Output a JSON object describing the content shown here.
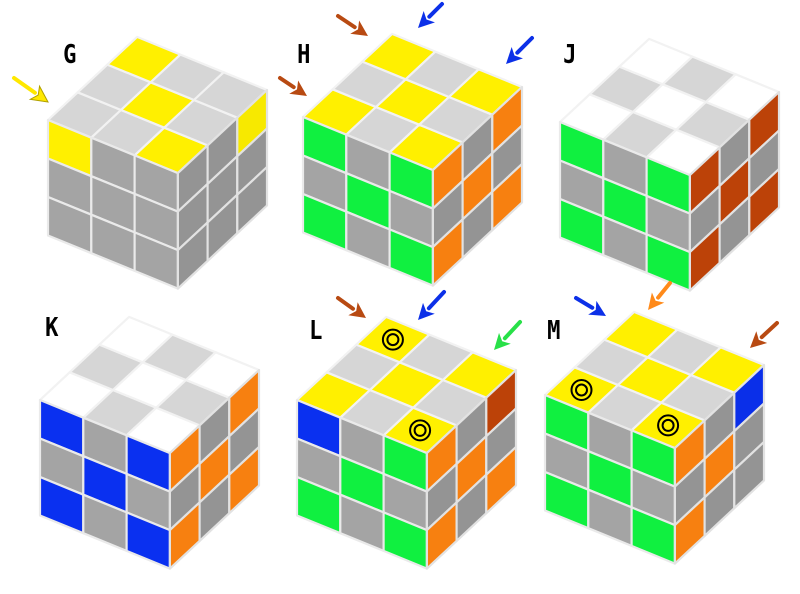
{
  "colors": {
    "X": "#a2a2a2",
    "Y": "#fff000",
    "G": "#10f040",
    "W": "#ffffff",
    "B": "#0a30f0",
    "O": "#ff8410",
    "R": "#c24408"
  },
  "arrow_colors": {
    "yellow": "#ffe800",
    "brown": "#b84a12",
    "blue": "#0c30e8",
    "green": "#28e048",
    "orange": "#ff8a1a"
  },
  "cubes": [
    {
      "label": "G",
      "top": [
        [
          "X",
          "X",
          "Y"
        ],
        [
          "X",
          "Y",
          "X"
        ],
        [
          "Y",
          "X",
          "X"
        ]
      ],
      "front": [
        [
          "Y",
          "X",
          "X"
        ],
        [
          "X",
          "X",
          "X"
        ],
        [
          "X",
          "X",
          "X"
        ]
      ],
      "right": [
        [
          "X",
          "X",
          "Y"
        ],
        [
          "X",
          "X",
          "X"
        ],
        [
          "X",
          "X",
          "X"
        ]
      ],
      "markers": []
    },
    {
      "label": "H",
      "top": [
        [
          "Y",
          "X",
          "Y"
        ],
        [
          "X",
          "Y",
          "X"
        ],
        [
          "Y",
          "X",
          "Y"
        ]
      ],
      "front": [
        [
          "G",
          "X",
          "G"
        ],
        [
          "X",
          "G",
          "X"
        ],
        [
          "G",
          "X",
          "G"
        ]
      ],
      "right": [
        [
          "O",
          "X",
          "O"
        ],
        [
          "X",
          "O",
          "X"
        ],
        [
          "O",
          "X",
          "O"
        ]
      ],
      "markers": []
    },
    {
      "label": "J",
      "top": [
        [
          "W",
          "X",
          "W"
        ],
        [
          "X",
          "W",
          "X"
        ],
        [
          "W",
          "X",
          "W"
        ]
      ],
      "front": [
        [
          "G",
          "X",
          "G"
        ],
        [
          "X",
          "G",
          "X"
        ],
        [
          "G",
          "X",
          "G"
        ]
      ],
      "right": [
        [
          "R",
          "X",
          "R"
        ],
        [
          "X",
          "R",
          "X"
        ],
        [
          "R",
          "X",
          "R"
        ]
      ],
      "markers": []
    },
    {
      "label": "K",
      "top": [
        [
          "W",
          "X",
          "W"
        ],
        [
          "X",
          "W",
          "X"
        ],
        [
          "W",
          "X",
          "W"
        ]
      ],
      "front": [
        [
          "B",
          "X",
          "B"
        ],
        [
          "X",
          "B",
          "X"
        ],
        [
          "B",
          "X",
          "B"
        ]
      ],
      "right": [
        [
          "O",
          "X",
          "O"
        ],
        [
          "X",
          "O",
          "X"
        ],
        [
          "O",
          "X",
          "O"
        ]
      ],
      "markers": []
    },
    {
      "label": "L",
      "top": [
        [
          "Y",
          "X",
          "Y"
        ],
        [
          "X",
          "Y",
          "X"
        ],
        [
          "Y",
          "X",
          "Y"
        ]
      ],
      "front": [
        [
          "B",
          "X",
          "G"
        ],
        [
          "X",
          "G",
          "X"
        ],
        [
          "G",
          "X",
          "G"
        ]
      ],
      "right": [
        [
          "O",
          "X",
          "R"
        ],
        [
          "X",
          "O",
          "X"
        ],
        [
          "O",
          "X",
          "O"
        ]
      ],
      "markers": [
        [
          0,
          2
        ],
        [
          2,
          0
        ]
      ]
    },
    {
      "label": "M",
      "top": [
        [
          "Y",
          "X",
          "Y"
        ],
        [
          "X",
          "Y",
          "X"
        ],
        [
          "Y",
          "X",
          "Y"
        ]
      ],
      "front": [
        [
          "G",
          "X",
          "G"
        ],
        [
          "X",
          "G",
          "X"
        ],
        [
          "G",
          "X",
          "G"
        ]
      ],
      "right": [
        [
          "O",
          "X",
          "B"
        ],
        [
          "X",
          "O",
          "X"
        ],
        [
          "O",
          "X",
          "X"
        ]
      ],
      "markers": [
        [
          0,
          0
        ],
        [
          2,
          0
        ]
      ]
    }
  ],
  "arrows": [
    {
      "cube": "G",
      "color": "yellow"
    },
    {
      "cube": "H",
      "color": "brown"
    },
    {
      "cube": "H",
      "color": "brown"
    },
    {
      "cube": "H",
      "color": "blue"
    },
    {
      "cube": "H",
      "color": "blue"
    },
    {
      "cube": "L",
      "color": "brown"
    },
    {
      "cube": "L",
      "color": "blue"
    },
    {
      "cube": "L",
      "color": "green"
    },
    {
      "cube": "M",
      "color": "blue"
    },
    {
      "cube": "M",
      "color": "orange"
    },
    {
      "cube": "M",
      "color": "brown"
    }
  ]
}
